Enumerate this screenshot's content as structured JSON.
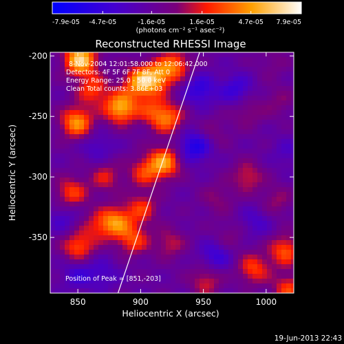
{
  "chart_data": {
    "type": "heatmap",
    "title": "Reconstructed RHESSI Image",
    "xlabel": "Heliocentric X (arcsec)",
    "ylabel": "Heliocentric Y (arcsec)",
    "xlim": [
      828,
      1022
    ],
    "ylim": [
      -396,
      -197
    ],
    "x_ticks": [
      "850",
      "900",
      "950",
      "1000"
    ],
    "x_tick_values": [
      850,
      900,
      950,
      1000
    ],
    "y_ticks": [
      "-200",
      "-250",
      "-300",
      "-350"
    ],
    "y_tick_values": [
      -200,
      -250,
      -300,
      -350
    ],
    "colorbar": {
      "ticks": [
        "-7.9e-05",
        "-4.7e-05",
        "-1.6e-05",
        "1.6e-05",
        "4.7e-05",
        "7.9e-05"
      ],
      "tick_values": [
        -7.9e-05,
        -4.7e-05,
        -1.6e-05,
        1.6e-05,
        4.7e-05,
        7.9e-05
      ],
      "range": [
        -7.9e-05,
        7.9e-05
      ],
      "units": "(photons cm⁻² s⁻¹ asec⁻²)"
    },
    "annotations": [
      "8-Nov-2004 12:01:58.000 to 12:06:42.000",
      "Detectors: 4F 5F 6F 7F 8F, Att 0",
      "Energy Range: 25.0 - 50.0 keV",
      "Clean     Total counts: 3.86E+03"
    ],
    "peak_label": "Position of Peak = [851,-203]",
    "limb_line": [
      [
        882,
        -396
      ],
      [
        947,
        -197
      ]
    ],
    "sources": [
      {
        "x": 849,
        "y": -255,
        "v": 6e-05
      },
      {
        "x": 862,
        "y": -228,
        "v": 4e-05
      },
      {
        "x": 852,
        "y": -203,
        "v": 7.9e-05
      },
      {
        "x": 884,
        "y": -243,
        "v": 6.8e-05
      },
      {
        "x": 899,
        "y": -222,
        "v": 5.8e-05
      },
      {
        "x": 912,
        "y": -218,
        "v": 5.2e-05
      },
      {
        "x": 927,
        "y": -208,
        "v": 4.8e-05
      },
      {
        "x": 922,
        "y": -252,
        "v": 4.6e-05
      },
      {
        "x": 909,
        "y": -245,
        "v": 3.2e-05
      },
      {
        "x": 919,
        "y": -288,
        "v": 6e-05
      },
      {
        "x": 903,
        "y": -296,
        "v": 3.6e-05
      },
      {
        "x": 872,
        "y": -300,
        "v": 3e-05
      },
      {
        "x": 845,
        "y": -313,
        "v": 4e-05
      },
      {
        "x": 850,
        "y": -358,
        "v": 4.5e-05
      },
      {
        "x": 865,
        "y": -341,
        "v": 2.6e-05
      },
      {
        "x": 880,
        "y": -337,
        "v": 5.4e-05
      },
      {
        "x": 901,
        "y": -326,
        "v": 3.6e-05
      },
      {
        "x": 894,
        "y": -352,
        "v": 4e-05
      },
      {
        "x": 923,
        "y": -355,
        "v": 2.6e-05
      },
      {
        "x": 958,
        "y": -263,
        "v": 1.5e-05
      },
      {
        "x": 985,
        "y": -246,
        "v": 2e-05
      },
      {
        "x": 1005,
        "y": -205,
        "v": 1.2e-05
      },
      {
        "x": 1010,
        "y": -238,
        "v": 1.6e-05
      },
      {
        "x": 985,
        "y": -300,
        "v": 3e-05
      },
      {
        "x": 1008,
        "y": -320,
        "v": 2e-05
      },
      {
        "x": 961,
        "y": -318,
        "v": 1.8e-05
      },
      {
        "x": 952,
        "y": -386,
        "v": 3e-05
      },
      {
        "x": 990,
        "y": -376,
        "v": 4e-05
      },
      {
        "x": 1015,
        "y": -361,
        "v": 4.5e-05
      },
      {
        "x": 1018,
        "y": -393,
        "v": 4e-05
      },
      {
        "x": 970,
        "y": -350,
        "v": 1.6e-05
      },
      {
        "x": 947,
        "y": -228,
        "v": -3.5e-05
      },
      {
        "x": 943,
        "y": -275,
        "v": -4.5e-05
      },
      {
        "x": 976,
        "y": -228,
        "v": -3e-05
      },
      {
        "x": 960,
        "y": -365,
        "v": -3e-05
      },
      {
        "x": 992,
        "y": -337,
        "v": -2e-05
      },
      {
        "x": 850,
        "y": -380,
        "v": -2.5e-05
      },
      {
        "x": 870,
        "y": -380,
        "v": -2e-05
      },
      {
        "x": 838,
        "y": -335,
        "v": -2e-05
      },
      {
        "x": 866,
        "y": -276,
        "v": -2e-05
      },
      {
        "x": 1017,
        "y": -280,
        "v": -1.5e-05
      }
    ]
  },
  "footer": {
    "timestamp": "19-Jun-2013 22:43"
  }
}
